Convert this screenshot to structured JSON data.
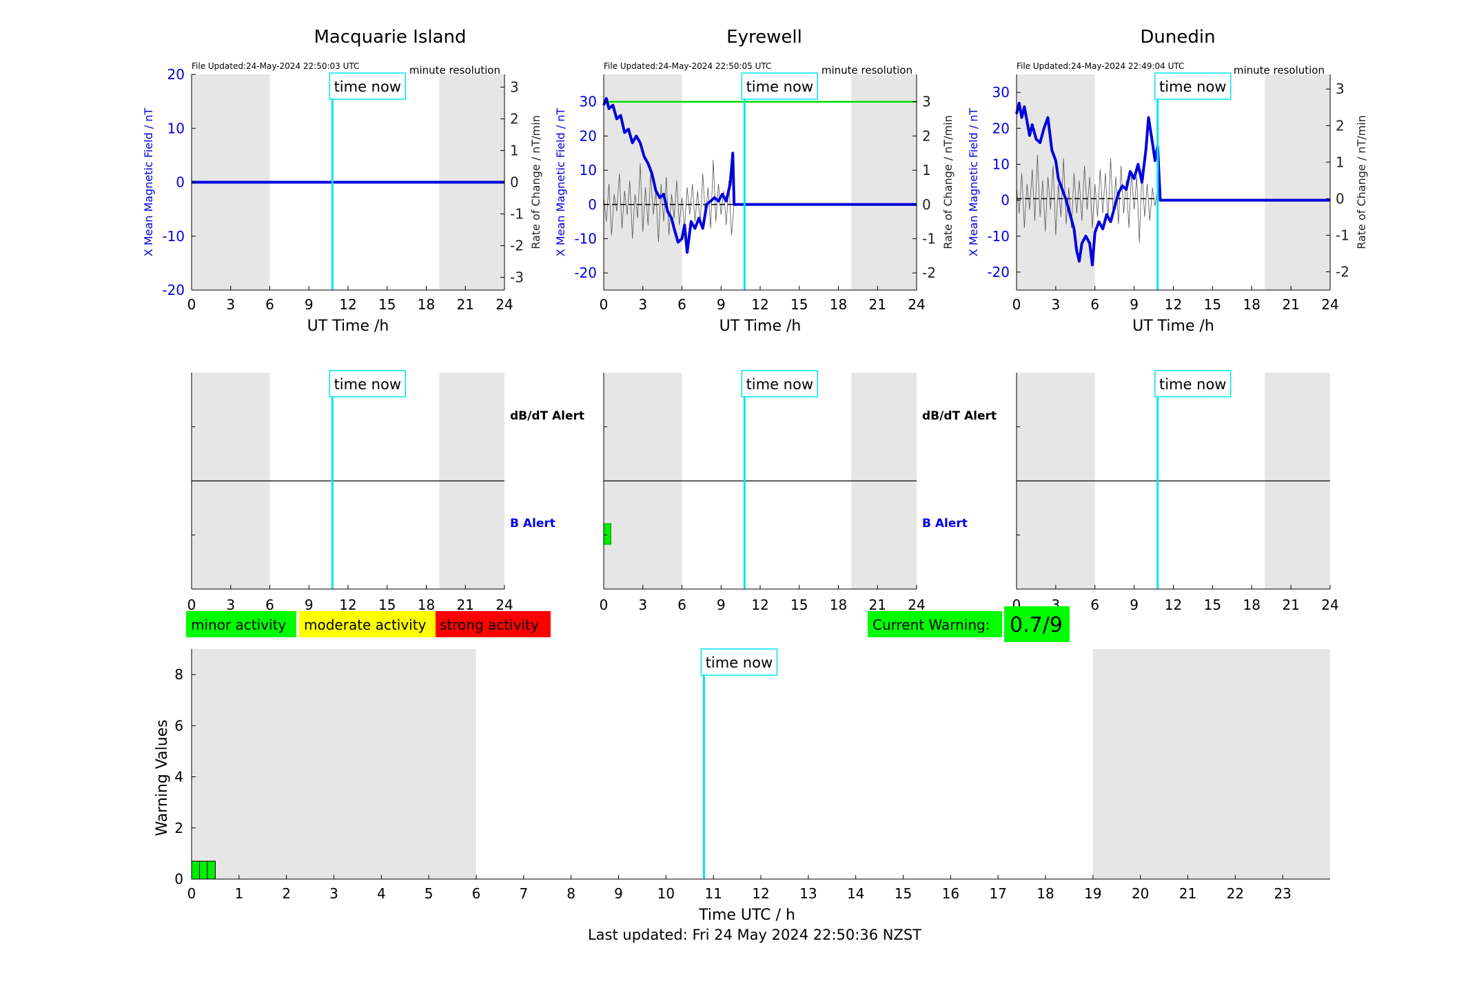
{
  "time_now_label": "time now",
  "last_updated": "Last updated: Fri 24 May 2024 22:50:36 NZST",
  "legend": {
    "minor": "minor activity",
    "moderate": "moderate activity",
    "strong": "strong activity",
    "current_warning_label": "Current Warning:",
    "current_warning_value": "0.7/9",
    "colors": {
      "minor": "#00ff00",
      "moderate": "#ffff00",
      "strong": "#ff0000"
    }
  },
  "chart_data": [
    {
      "type": "line",
      "station": "Macquarie Island",
      "title": "Macquarie Island",
      "file_updated": "File Updated:24-May-2024 22:50:03 UTC",
      "resolution": "minute resolution",
      "xlabel": "UT Time /h",
      "ylabel_left": "X Mean Magnetic Field / nT",
      "ylabel_right": "Rate of Change / nT/min",
      "xlim": [
        0,
        24
      ],
      "xticks": [
        0,
        3,
        6,
        9,
        12,
        15,
        18,
        21,
        24
      ],
      "ylim_left": [
        -20,
        20
      ],
      "yticks_left": [
        -20,
        -10,
        0,
        10,
        20
      ],
      "ylim_right": [
        -3.4,
        3.4
      ],
      "yticks_right": [
        -3,
        -2,
        -1,
        0,
        1,
        2,
        3
      ],
      "night_bands": [
        [
          0,
          6
        ],
        [
          19,
          24
        ]
      ],
      "time_now": 10.8,
      "series": [
        {
          "color": "#0000dd",
          "points": [
            [
              0,
              0
            ],
            [
              24,
              0
            ]
          ]
        }
      ],
      "rate_points": []
    },
    {
      "type": "line",
      "station": "Eyrewell",
      "title": "Eyrewell",
      "file_updated": "File Updated:24-May-2024 22:50:05 UTC",
      "resolution": "minute resolution",
      "xlabel": "UT Time /h",
      "ylabel_left": "X Mean Magnetic Field / nT",
      "ylabel_right": "Rate of Change / nT/min",
      "xlim": [
        0,
        24
      ],
      "xticks": [
        0,
        3,
        6,
        9,
        12,
        15,
        18,
        21,
        24
      ],
      "ylim_left": [
        -25,
        38
      ],
      "yticks_left": [
        -20,
        -10,
        0,
        10,
        20,
        30
      ],
      "ylim_right": [
        -2.5,
        3.8
      ],
      "yticks_right": [
        -2,
        -1,
        0,
        1,
        2,
        3
      ],
      "night_bands": [
        [
          0,
          6
        ],
        [
          19,
          24
        ]
      ],
      "time_now": 10.8,
      "threshold_right": 3,
      "series": [
        {
          "color": "#0000dd",
          "points": [
            [
              0,
              29
            ],
            [
              0.2,
              31
            ],
            [
              0.4,
              28
            ],
            [
              0.7,
              29
            ],
            [
              1,
              25
            ],
            [
              1.3,
              26
            ],
            [
              1.6,
              21
            ],
            [
              1.9,
              22
            ],
            [
              2.2,
              18
            ],
            [
              2.5,
              20
            ],
            [
              2.8,
              18
            ],
            [
              3.1,
              14
            ],
            [
              3.4,
              12
            ],
            [
              3.7,
              9
            ],
            [
              4,
              4
            ],
            [
              4.3,
              2
            ],
            [
              4.6,
              3
            ],
            [
              4.9,
              -2
            ],
            [
              5.2,
              -4
            ],
            [
              5.4,
              -7
            ],
            [
              5.7,
              -11
            ],
            [
              6,
              -10
            ],
            [
              6.2,
              -6
            ],
            [
              6.4,
              -14
            ],
            [
              6.7,
              -5
            ],
            [
              7,
              -7
            ],
            [
              7.3,
              -4
            ],
            [
              7.6,
              -7
            ],
            [
              7.9,
              0
            ],
            [
              8.2,
              1
            ],
            [
              8.5,
              2
            ],
            [
              8.8,
              1
            ],
            [
              9.1,
              3
            ],
            [
              9.4,
              1
            ],
            [
              9.7,
              6
            ],
            [
              9.9,
              15
            ],
            [
              10,
              0
            ],
            [
              24,
              0
            ]
          ]
        }
      ],
      "rate_points": [
        [
          0,
          0.2
        ],
        [
          0.2,
          -0.5
        ],
        [
          0.4,
          0.6
        ],
        [
          0.6,
          -0.9
        ],
        [
          0.8,
          0.3
        ],
        [
          1,
          -0.2
        ],
        [
          1.2,
          0.9
        ],
        [
          1.4,
          -0.7
        ],
        [
          1.6,
          0.4
        ],
        [
          1.8,
          -0.3
        ],
        [
          2,
          0.7
        ],
        [
          2.2,
          -1
        ],
        [
          2.4,
          0.3
        ],
        [
          2.6,
          -0.4
        ],
        [
          2.8,
          1.2
        ],
        [
          3,
          -0.8
        ],
        [
          3.2,
          0.5
        ],
        [
          3.4,
          -0.6
        ],
        [
          3.6,
          0.9
        ],
        [
          3.8,
          -0.3
        ],
        [
          4,
          0.4
        ],
        [
          4.2,
          -1.1
        ],
        [
          4.4,
          0.6
        ],
        [
          4.6,
          -0.5
        ],
        [
          4.8,
          0.8
        ],
        [
          5,
          -0.9
        ],
        [
          5.2,
          0.3
        ],
        [
          5.4,
          -0.4
        ],
        [
          5.6,
          0.7
        ],
        [
          5.8,
          -0.6
        ],
        [
          6,
          0.2
        ],
        [
          6.2,
          -0.7
        ],
        [
          6.4,
          0.5
        ],
        [
          6.6,
          -0.3
        ],
        [
          6.8,
          0.6
        ],
        [
          7,
          -0.5
        ],
        [
          7.2,
          0.4
        ],
        [
          7.4,
          -0.6
        ],
        [
          7.6,
          0.9
        ],
        [
          7.8,
          -0.4
        ],
        [
          8,
          0.5
        ],
        [
          8.2,
          -0.7
        ],
        [
          8.4,
          1.3
        ],
        [
          8.6,
          -0.5
        ],
        [
          8.8,
          0.6
        ],
        [
          9,
          -0.3
        ],
        [
          9.2,
          0.4
        ],
        [
          9.4,
          -0.6
        ],
        [
          9.6,
          0.7
        ],
        [
          9.8,
          -0.9
        ],
        [
          10,
          0
        ]
      ]
    },
    {
      "type": "line",
      "station": "Dunedin",
      "title": "Dunedin",
      "file_updated": "File Updated:24-May-2024 22:49:04 UTC",
      "resolution": "minute resolution",
      "xlabel": "UT Time /h",
      "ylabel_left": "X Mean Magnetic Field / nT",
      "ylabel_right": "Rate of Change / nT/min",
      "xlim": [
        0,
        24
      ],
      "xticks": [
        0,
        3,
        6,
        9,
        12,
        15,
        18,
        21,
        24
      ],
      "ylim_left": [
        -25,
        35
      ],
      "yticks_left": [
        -20,
        -10,
        0,
        10,
        20,
        30
      ],
      "ylim_right": [
        -2.5,
        3.4
      ],
      "yticks_right": [
        -2,
        -1,
        0,
        1,
        2,
        3
      ],
      "night_bands": [
        [
          0,
          6
        ],
        [
          19,
          24
        ]
      ],
      "time_now": 10.8,
      "series": [
        {
          "color": "#0000dd",
          "points": [
            [
              0,
              24
            ],
            [
              0.2,
              27
            ],
            [
              0.4,
              23
            ],
            [
              0.6,
              26
            ],
            [
              0.8,
              22
            ],
            [
              1,
              18
            ],
            [
              1.2,
              21
            ],
            [
              1.5,
              17
            ],
            [
              1.8,
              16
            ],
            [
              2.1,
              20
            ],
            [
              2.4,
              23
            ],
            [
              2.7,
              14
            ],
            [
              3,
              11
            ],
            [
              3.2,
              6
            ],
            [
              3.5,
              3
            ],
            [
              3.8,
              0
            ],
            [
              4.1,
              -4
            ],
            [
              4.4,
              -8
            ],
            [
              4.6,
              -14
            ],
            [
              4.8,
              -17
            ],
            [
              5,
              -12
            ],
            [
              5.3,
              -10
            ],
            [
              5.6,
              -12
            ],
            [
              5.8,
              -18
            ],
            [
              6,
              -9
            ],
            [
              6.3,
              -6
            ],
            [
              6.6,
              -8
            ],
            [
              6.9,
              -4
            ],
            [
              7.2,
              -6
            ],
            [
              7.5,
              -2
            ],
            [
              7.8,
              2
            ],
            [
              8.1,
              4
            ],
            [
              8.4,
              3
            ],
            [
              8.7,
              8
            ],
            [
              9,
              6
            ],
            [
              9.3,
              10
            ],
            [
              9.6,
              5
            ],
            [
              9.9,
              14
            ],
            [
              10.1,
              23
            ],
            [
              10.4,
              16
            ],
            [
              10.6,
              11
            ],
            [
              10.8,
              15
            ],
            [
              11,
              0
            ],
            [
              24,
              0
            ]
          ]
        }
      ],
      "rate_points": [
        [
          0,
          0.3
        ],
        [
          0.2,
          -0.4
        ],
        [
          0.4,
          0.7
        ],
        [
          0.6,
          -0.8
        ],
        [
          0.8,
          0.4
        ],
        [
          1,
          -0.3
        ],
        [
          1.2,
          0.8
        ],
        [
          1.4,
          -0.6
        ],
        [
          1.6,
          1.2
        ],
        [
          1.8,
          -0.5
        ],
        [
          2,
          0.5
        ],
        [
          2.2,
          -0.9
        ],
        [
          2.4,
          0.6
        ],
        [
          2.6,
          -0.3
        ],
        [
          2.8,
          0.9
        ],
        [
          3,
          -1
        ],
        [
          3.2,
          0.4
        ],
        [
          3.4,
          -0.5
        ],
        [
          3.6,
          1.1
        ],
        [
          3.8,
          -0.7
        ],
        [
          4,
          0.3
        ],
        [
          4.2,
          -0.8
        ],
        [
          4.4,
          0.7
        ],
        [
          4.6,
          -0.4
        ],
        [
          4.8,
          0.5
        ],
        [
          5,
          -0.6
        ],
        [
          5.2,
          0.9
        ],
        [
          5.4,
          -0.3
        ],
        [
          5.6,
          0.6
        ],
        [
          5.8,
          -0.8
        ],
        [
          6,
          0.4
        ],
        [
          6.2,
          -0.5
        ],
        [
          6.4,
          0.8
        ],
        [
          6.6,
          -0.4
        ],
        [
          6.8,
          0.7
        ],
        [
          7,
          -0.6
        ],
        [
          7.2,
          1.1
        ],
        [
          7.4,
          -0.5
        ],
        [
          7.6,
          0.6
        ],
        [
          7.8,
          -0.7
        ],
        [
          8,
          0.9
        ],
        [
          8.2,
          -0.4
        ],
        [
          8.4,
          0.5
        ],
        [
          8.6,
          -0.8
        ],
        [
          8.8,
          0.7
        ],
        [
          9,
          -0.3
        ],
        [
          9.2,
          0.6
        ],
        [
          9.4,
          -1.2
        ],
        [
          9.6,
          0.8
        ],
        [
          9.8,
          -0.5
        ],
        [
          10,
          0.4
        ],
        [
          10.2,
          -0.6
        ],
        [
          10.4,
          0.3
        ],
        [
          10.6,
          -0.2
        ],
        [
          10.8,
          0.3
        ],
        [
          11,
          0
        ]
      ]
    },
    {
      "type": "bar",
      "station": "Macquarie Island",
      "dbdt_label": "dB/dT Alert",
      "b_label": "B Alert",
      "xlim": [
        0,
        24
      ],
      "xticks": [
        0,
        3,
        6,
        9,
        12,
        15,
        18,
        21,
        24
      ],
      "night_bands": [
        [
          0,
          6
        ],
        [
          19,
          24
        ]
      ],
      "time_now": 10.8,
      "b_alert_bars": []
    },
    {
      "type": "bar",
      "station": "Eyrewell",
      "xlim": [
        0,
        24
      ],
      "xticks": [
        0,
        3,
        6,
        9,
        12,
        15,
        18,
        21,
        24
      ],
      "night_bands": [
        [
          0,
          6
        ],
        [
          19,
          24
        ]
      ],
      "time_now": 10.8,
      "b_alert_bars": [
        [
          0,
          0.55
        ]
      ]
    },
    {
      "type": "bar",
      "station": "Dunedin",
      "dbdt_label": "dB/dT Alert",
      "b_label": "B Alert",
      "xlim": [
        0,
        24
      ],
      "xticks": [
        0,
        3,
        6,
        9,
        12,
        15,
        18,
        21,
        24
      ],
      "night_bands": [
        [
          0,
          6
        ],
        [
          19,
          24
        ]
      ],
      "time_now": 10.8,
      "b_alert_bars": []
    },
    {
      "type": "bar",
      "station": "Warning Values",
      "xlabel": "Time UTC / h",
      "ylabel": "Warning Values",
      "xlim": [
        0,
        24
      ],
      "xticks": [
        0,
        1,
        2,
        3,
        4,
        5,
        6,
        7,
        8,
        9,
        10,
        11,
        12,
        13,
        14,
        15,
        16,
        17,
        18,
        19,
        20,
        21,
        22,
        23
      ],
      "ylim": [
        0,
        9
      ],
      "yticks": [
        0,
        2,
        4,
        6,
        8
      ],
      "night_bands": [
        [
          0,
          6
        ],
        [
          19,
          24
        ]
      ],
      "time_now": 10.8,
      "bars": [
        {
          "x0": 0,
          "x1": 0.167,
          "value": 0.7
        },
        {
          "x0": 0.167,
          "x1": 0.333,
          "value": 0.7
        },
        {
          "x0": 0.333,
          "x1": 0.5,
          "value": 0.7
        }
      ]
    }
  ]
}
